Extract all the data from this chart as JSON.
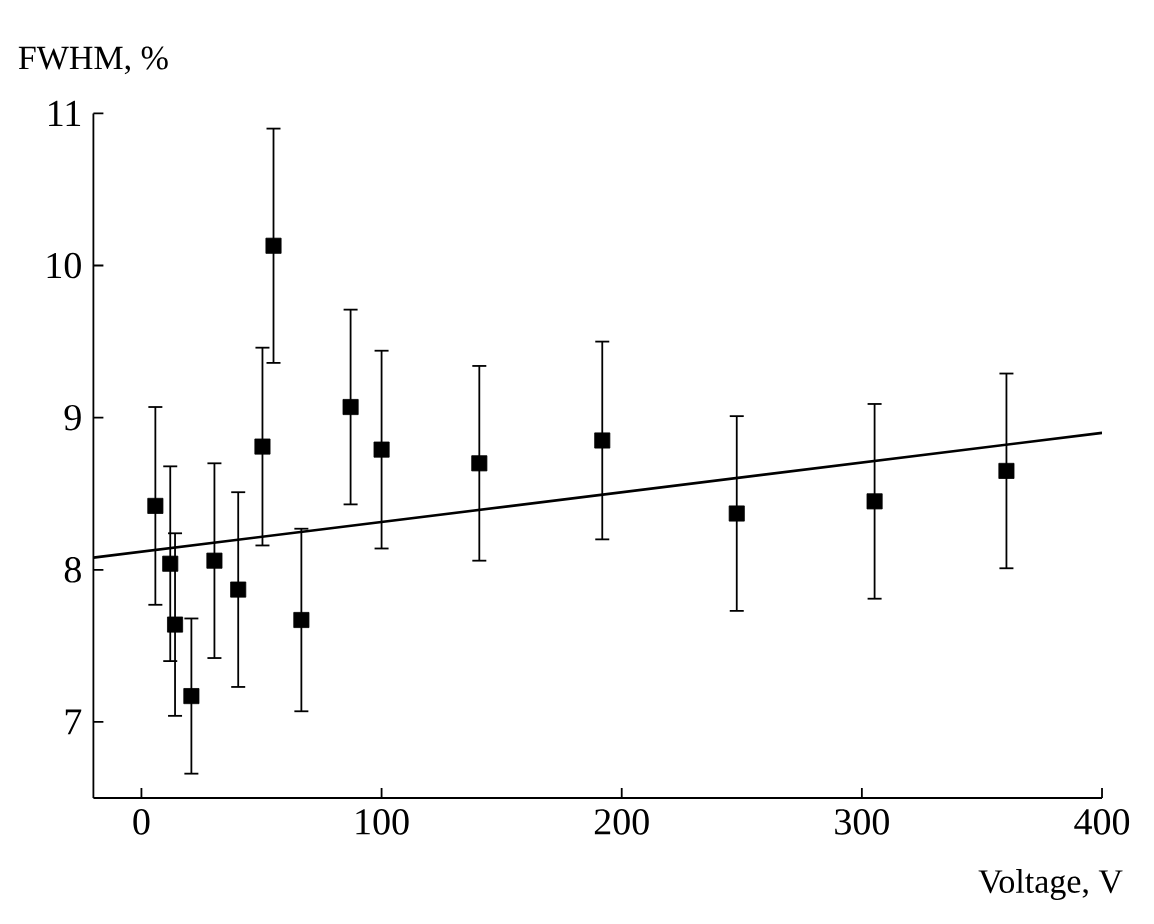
{
  "chart_data": {
    "type": "scatter",
    "xlabel": "Voltage, V",
    "ylabel": "FWHM, %",
    "xlim": [
      -20,
      400
    ],
    "ylim": [
      6.5,
      11
    ],
    "xticks": [
      0,
      100,
      200,
      300,
      400
    ],
    "yticks": [
      7,
      8,
      9,
      10,
      11
    ],
    "series": [
      {
        "color": "#000000",
        "marker": "square",
        "x": [
          5.8,
          12,
          14,
          20.8,
          30.4,
          40.3,
          50.4,
          55,
          66.6,
          87.1,
          100,
          140.7,
          191.9,
          247.9,
          305.3,
          360.2
        ],
        "values": [
          8.42,
          8.04,
          7.64,
          7.17,
          8.06,
          7.87,
          8.81,
          10.13,
          7.67,
          9.07,
          8.79,
          8.7,
          8.85,
          8.37,
          8.45,
          8.65
        ],
        "errors": [
          0.65,
          0.64,
          0.6,
          0.51,
          0.64,
          0.64,
          0.65,
          0.77,
          0.6,
          0.64,
          0.65,
          0.64,
          0.65,
          0.64,
          0.64,
          0.64
        ]
      },
      {
        "type": "line",
        "color": "#000000",
        "marker": "none",
        "line_style": "solid",
        "x": [
          -20,
          400
        ],
        "values": [
          8.08,
          8.9
        ]
      }
    ]
  }
}
